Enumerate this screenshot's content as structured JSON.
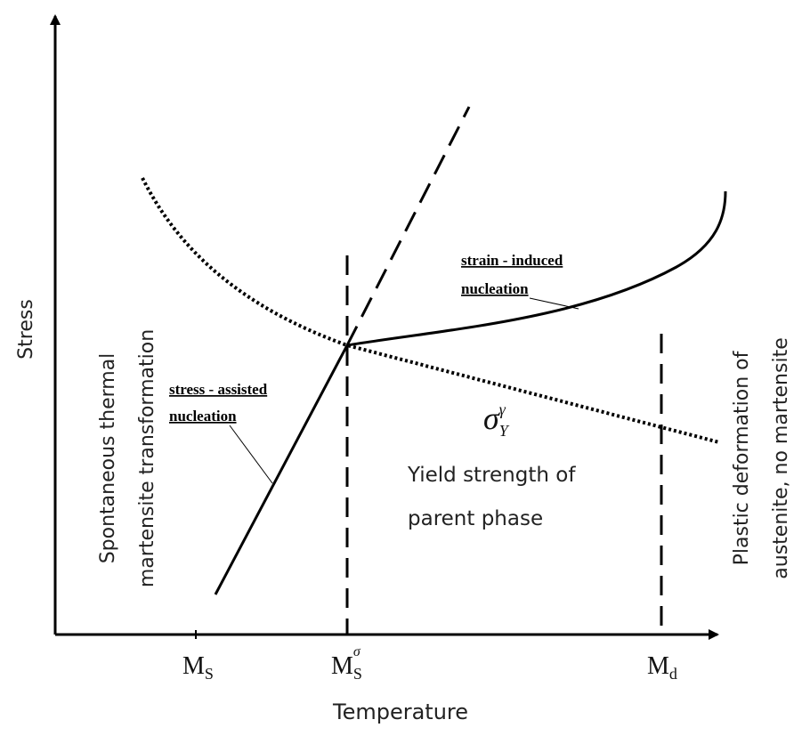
{
  "axes": {
    "y_label": "Stress",
    "x_label": "Temperature"
  },
  "x_ticks": [
    {
      "base": "M",
      "sub": "S"
    },
    {
      "base": "M",
      "sub": "S",
      "sup": "σ"
    },
    {
      "base": "M",
      "sub": "d"
    }
  ],
  "curves": {
    "strain_induced": [
      "strain - induced",
      "nucleation"
    ],
    "stress_assisted": [
      "stress - assisted",
      "nucleation"
    ]
  },
  "yield_symbol": {
    "base": "σ",
    "sub": "Y",
    "sup": "γ"
  },
  "yield_text": [
    "Yield strength of",
    "parent phase"
  ],
  "regions": {
    "left": [
      "Spontaneous thermal",
      "martensite transformation"
    ],
    "right": [
      "Plastic deformation of",
      "austenite, no martensite"
    ]
  }
}
